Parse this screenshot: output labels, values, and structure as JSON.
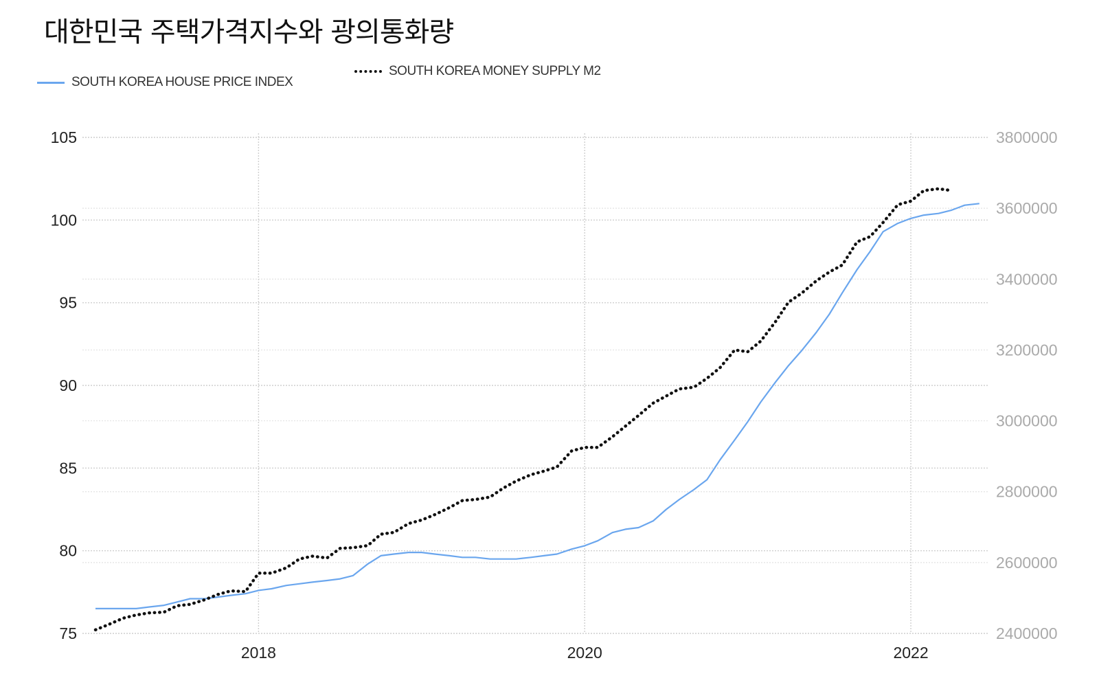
{
  "chart_data": {
    "type": "line",
    "title": "대한민국 주택가격지수와 광의통화량",
    "xlabel": "",
    "ylabel": "",
    "grid": true,
    "legend_position": "top-left",
    "x_ticks": [
      "2018",
      "2020",
      "2022"
    ],
    "x_tick_values": [
      2018.0,
      2020.0,
      2022.0
    ],
    "xlim": [
      2016.92,
      2022.48
    ],
    "y_left": {
      "ylim": [
        75,
        105
      ],
      "ticks": [
        "105",
        "100",
        "95",
        "90",
        "85",
        "80",
        "75"
      ]
    },
    "y_right": {
      "ylim": [
        2400000,
        3800000
      ],
      "ticks": [
        "3800000",
        "3600000",
        "3400000",
        "3200000",
        "3000000",
        "2800000",
        "2600000",
        "2400000"
      ]
    },
    "series": [
      {
        "name": "SOUTH KOREA HOUSE PRICE INDEX",
        "axis": "left",
        "color": "#6aa6ee",
        "style": "solid",
        "x": [
          2017.0,
          2017.08,
          2017.17,
          2017.25,
          2017.33,
          2017.42,
          2017.5,
          2017.58,
          2017.67,
          2017.75,
          2017.83,
          2017.92,
          2018.0,
          2018.08,
          2018.17,
          2018.25,
          2018.33,
          2018.42,
          2018.5,
          2018.58,
          2018.67,
          2018.75,
          2018.83,
          2018.92,
          2019.0,
          2019.08,
          2019.17,
          2019.25,
          2019.33,
          2019.42,
          2019.5,
          2019.58,
          2019.67,
          2019.75,
          2019.83,
          2019.92,
          2020.0,
          2020.08,
          2020.17,
          2020.25,
          2020.33,
          2020.42,
          2020.5,
          2020.58,
          2020.67,
          2020.75,
          2020.83,
          2020.92,
          2021.0,
          2021.08,
          2021.17,
          2021.25,
          2021.33,
          2021.42,
          2021.5,
          2021.58,
          2021.67,
          2021.75,
          2021.83,
          2021.92,
          2022.0,
          2022.08,
          2022.17,
          2022.25,
          2022.33,
          2022.42
        ],
        "values": [
          76.5,
          76.5,
          76.5,
          76.5,
          76.6,
          76.7,
          76.9,
          77.1,
          77.1,
          77.2,
          77.3,
          77.4,
          77.6,
          77.7,
          77.9,
          78.0,
          78.1,
          78.2,
          78.3,
          78.5,
          79.2,
          79.7,
          79.8,
          79.9,
          79.9,
          79.8,
          79.7,
          79.6,
          79.6,
          79.5,
          79.5,
          79.5,
          79.6,
          79.7,
          79.8,
          80.1,
          80.3,
          80.6,
          81.1,
          81.3,
          81.4,
          81.8,
          82.5,
          83.1,
          83.7,
          84.3,
          85.5,
          86.7,
          87.8,
          89.0,
          90.2,
          91.2,
          92.1,
          93.2,
          94.3,
          95.6,
          97.0,
          98.1,
          99.3,
          99.8,
          100.1,
          100.3,
          100.4,
          100.6,
          100.9,
          101.0
        ]
      },
      {
        "name": "SOUTH KOREA MONEY SUPPLY M2",
        "axis": "right",
        "color": "#111111",
        "style": "dotted",
        "x": [
          2017.0,
          2017.08,
          2017.17,
          2017.25,
          2017.33,
          2017.42,
          2017.5,
          2017.58,
          2017.67,
          2017.75,
          2017.83,
          2017.92,
          2018.0,
          2018.08,
          2018.17,
          2018.25,
          2018.33,
          2018.42,
          2018.5,
          2018.58,
          2018.67,
          2018.75,
          2018.83,
          2018.92,
          2019.0,
          2019.08,
          2019.17,
          2019.25,
          2019.33,
          2019.42,
          2019.5,
          2019.58,
          2019.67,
          2019.75,
          2019.83,
          2019.92,
          2020.0,
          2020.08,
          2020.17,
          2020.25,
          2020.33,
          2020.42,
          2020.5,
          2020.58,
          2020.67,
          2020.75,
          2020.83,
          2020.92,
          2021.0,
          2021.08,
          2021.17,
          2021.25,
          2021.33,
          2021.42,
          2021.5,
          2021.58,
          2021.67,
          2021.75,
          2021.83,
          2021.92,
          2022.0,
          2022.08,
          2022.17,
          2022.25
        ],
        "values": [
          2410000,
          2425000,
          2443000,
          2452000,
          2458000,
          2460000,
          2478000,
          2482000,
          2495000,
          2510000,
          2520000,
          2518000,
          2570000,
          2570000,
          2585000,
          2610000,
          2618000,
          2613000,
          2640000,
          2642000,
          2648000,
          2680000,
          2685000,
          2710000,
          2720000,
          2735000,
          2755000,
          2775000,
          2778000,
          2785000,
          2810000,
          2830000,
          2848000,
          2858000,
          2870000,
          2915000,
          2925000,
          2925000,
          2955000,
          2985000,
          3015000,
          3050000,
          3070000,
          3090000,
          3095000,
          3120000,
          3150000,
          3200000,
          3195000,
          3225000,
          3280000,
          3335000,
          3360000,
          3395000,
          3420000,
          3440000,
          3505000,
          3520000,
          3560000,
          3610000,
          3620000,
          3650000,
          3655000,
          3650000
        ]
      }
    ]
  }
}
